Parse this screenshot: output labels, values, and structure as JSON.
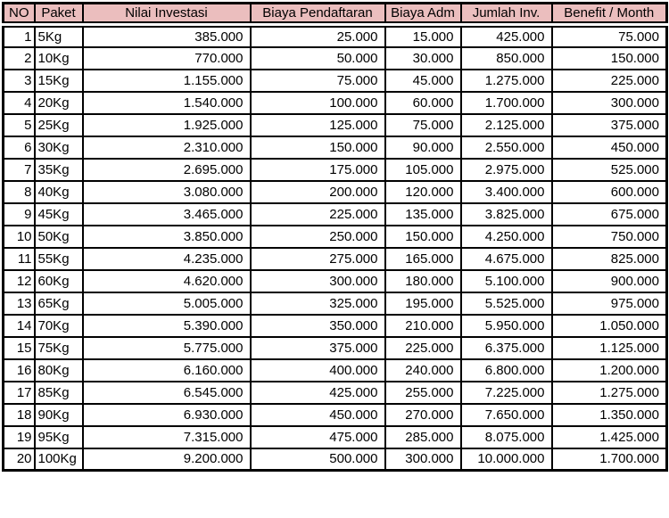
{
  "table": {
    "columns": [
      "NO",
      "Paket",
      "Nilai Investasi",
      "Biaya Pendaftaran",
      "Biaya Adm",
      "Jumlah Inv.",
      "Benefit / Month"
    ],
    "column_keys": [
      "no",
      "paket",
      "nilai-investasi",
      "biaya-pendaftaran",
      "biaya-adm",
      "jumlah-inv",
      "benefit-month"
    ],
    "rows": [
      [
        "1",
        "5Kg",
        "385.000",
        "25.000",
        "15.000",
        "425.000",
        "75.000"
      ],
      [
        "2",
        "10Kg",
        "770.000",
        "50.000",
        "30.000",
        "850.000",
        "150.000"
      ],
      [
        "3",
        "15Kg",
        "1.155.000",
        "75.000",
        "45.000",
        "1.275.000",
        "225.000"
      ],
      [
        "4",
        "20Kg",
        "1.540.000",
        "100.000",
        "60.000",
        "1.700.000",
        "300.000"
      ],
      [
        "5",
        "25Kg",
        "1.925.000",
        "125.000",
        "75.000",
        "2.125.000",
        "375.000"
      ],
      [
        "6",
        "30Kg",
        "2.310.000",
        "150.000",
        "90.000",
        "2.550.000",
        "450.000"
      ],
      [
        "7",
        "35Kg",
        "2.695.000",
        "175.000",
        "105.000",
        "2.975.000",
        "525.000"
      ],
      [
        "8",
        "40Kg",
        "3.080.000",
        "200.000",
        "120.000",
        "3.400.000",
        "600.000"
      ],
      [
        "9",
        "45Kg",
        "3.465.000",
        "225.000",
        "135.000",
        "3.825.000",
        "675.000"
      ],
      [
        "10",
        "50Kg",
        "3.850.000",
        "250.000",
        "150.000",
        "4.250.000",
        "750.000"
      ],
      [
        "11",
        "55Kg",
        "4.235.000",
        "275.000",
        "165.000",
        "4.675.000",
        "825.000"
      ],
      [
        "12",
        "60Kg",
        "4.620.000",
        "300.000",
        "180.000",
        "5.100.000",
        "900.000"
      ],
      [
        "13",
        "65Kg",
        "5.005.000",
        "325.000",
        "195.000",
        "5.525.000",
        "975.000"
      ],
      [
        "14",
        "70Kg",
        "5.390.000",
        "350.000",
        "210.000",
        "5.950.000",
        "1.050.000"
      ],
      [
        "15",
        "75Kg",
        "5.775.000",
        "375.000",
        "225.000",
        "6.375.000",
        "1.125.000"
      ],
      [
        "16",
        "80Kg",
        "6.160.000",
        "400.000",
        "240.000",
        "6.800.000",
        "1.200.000"
      ],
      [
        "17",
        "85Kg",
        "6.545.000",
        "425.000",
        "255.000",
        "7.225.000",
        "1.275.000"
      ],
      [
        "18",
        "90Kg",
        "6.930.000",
        "450.000",
        "270.000",
        "7.650.000",
        "1.350.000"
      ],
      [
        "19",
        "95Kg",
        "7.315.000",
        "475.000",
        "285.000",
        "8.075.000",
        "1.425.000"
      ],
      [
        "20",
        "100Kg",
        "9.200.000",
        "500.000",
        "300.000",
        "10.000.000",
        "1.700.000"
      ]
    ]
  },
  "colors": {
    "header_bg": "#EBBEBE",
    "border": "#000000",
    "row_bg": "#FFFFFF",
    "text": "#000000"
  }
}
